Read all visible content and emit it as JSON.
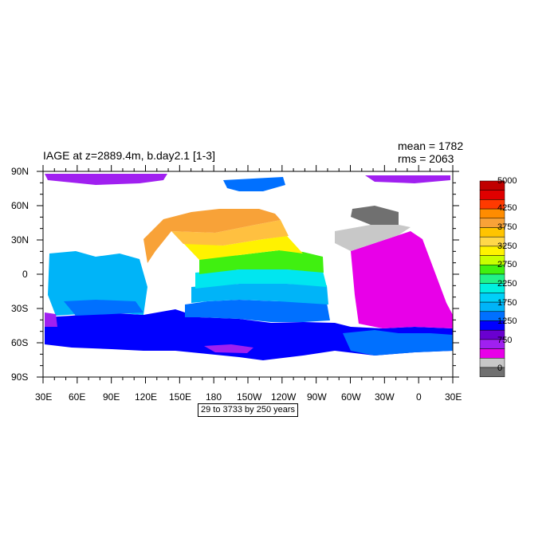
{
  "title": "IAGE at z=2889.4m, b.day2.1 [1-3]",
  "stats": {
    "mean": "mean = 1782",
    "rms": "rms = 2063"
  },
  "footnote": "29 to 3733 by 250 years",
  "lat_labels": [
    "90N",
    "60N",
    "30N",
    "0",
    "30S",
    "60S",
    "90S"
  ],
  "lon_labels": [
    "30E",
    "60E",
    "90E",
    "120E",
    "150E",
    "180",
    "150W",
    "120W",
    "90W",
    "60W",
    "30W",
    "0",
    "30E"
  ],
  "colorbar": {
    "labels": [
      "5000",
      "4250",
      "3750",
      "3250",
      "2750",
      "2250",
      "1750",
      "1250",
      "750",
      "0"
    ],
    "colors": [
      "#c00000",
      "#e00000",
      "#ff3a00",
      "#ff8c00",
      "#f8a238",
      "#ffc400",
      "#ffd84a",
      "#fff200",
      "#c8ff00",
      "#40f010",
      "#22f28a",
      "#00f0e0",
      "#00d0f8",
      "#00b4f8",
      "#0070ff",
      "#0000ff",
      "#6a00d0",
      "#a020f0",
      "#e800e8",
      "#c8c8c8",
      "#707070"
    ]
  },
  "colors": {
    "land": "#ffffff",
    "purple": "#a020f0",
    "blue": "#0000ff",
    "mid_blue": "#0070ff",
    "light_blue": "#00b4f8",
    "cyan": "#00e6f0",
    "green": "#40f010",
    "yellow": "#fff200",
    "light_orange": "#ffc040",
    "orange": "#f8a238",
    "magenta": "#e800e8",
    "gray": "#c8c8c8",
    "dark_gray": "#707070"
  }
}
